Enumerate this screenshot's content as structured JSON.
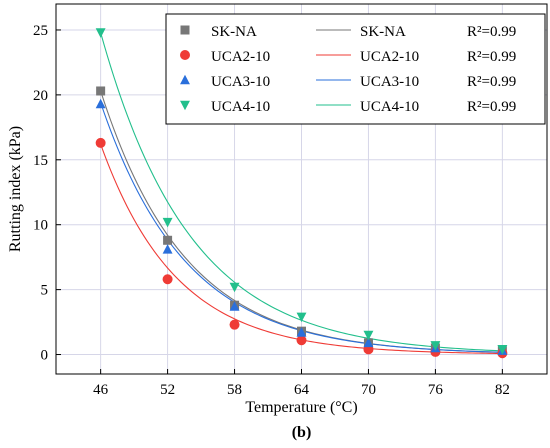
{
  "chart_data": {
    "type": "scatter",
    "caption": "(b)",
    "xlabel": "Temperature (°C)",
    "ylabel": "Rutting index (kPa)",
    "x": [
      46,
      52,
      58,
      64,
      70,
      76,
      82
    ],
    "xlim": [
      42,
      86
    ],
    "ylim": [
      -1.5,
      27
    ],
    "xticks": [
      46,
      52,
      58,
      64,
      70,
      76,
      82
    ],
    "yticks": [
      0,
      5,
      10,
      15,
      20,
      25
    ],
    "grid": true,
    "legend_position": "top-right",
    "r2_text": "R²=0.99",
    "series": [
      {
        "name": "SK-NA",
        "marker": "square",
        "color": "#777777",
        "values": [
          20.3,
          8.8,
          3.8,
          1.8,
          0.9,
          0.5,
          0.3
        ],
        "fit_a": 20.3,
        "fit_b": 0.132
      },
      {
        "name": "UCA2-10",
        "marker": "circle",
        "color": "#ef3b36",
        "values": [
          16.3,
          5.8,
          2.3,
          1.1,
          0.4,
          0.2,
          0.1
        ],
        "fit_a": 16.2,
        "fit_b": 0.148
      },
      {
        "name": "UCA3-10",
        "marker": "triangle-up",
        "color": "#2a6fdb",
        "values": [
          19.3,
          8.1,
          3.7,
          1.7,
          0.9,
          0.5,
          0.3
        ],
        "fit_a": 19.4,
        "fit_b": 0.131
      },
      {
        "name": "UCA4-10",
        "marker": "triangle-down",
        "color": "#22bf8c",
        "values": [
          24.8,
          10.2,
          5.2,
          2.9,
          1.5,
          0.7,
          0.4
        ],
        "fit_a": 24.8,
        "fit_b": 0.1245
      }
    ]
  }
}
